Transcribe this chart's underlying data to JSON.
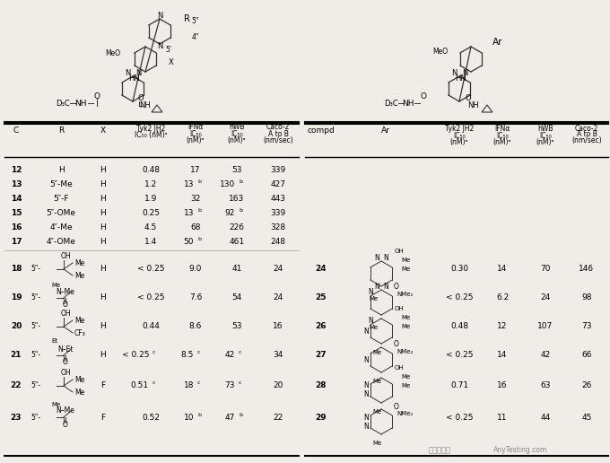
{
  "fig_w": 6.8,
  "fig_h": 5.16,
  "dpi": 100,
  "bg": "#f0ede8",
  "left_simple": [
    [
      "12",
      "H",
      "H",
      "0.48",
      "17",
      "53",
      "339"
    ],
    [
      "13",
      "5″-Me",
      "H",
      "1.2",
      "13b",
      "130b",
      "427"
    ],
    [
      "14",
      "5″-F",
      "H",
      "1.9",
      "32",
      "163",
      "443"
    ],
    [
      "15",
      "5″-OMe",
      "H",
      "0.25",
      "13b",
      "92b",
      "339"
    ],
    [
      "16",
      "4″-Me",
      "H",
      "4.5",
      "68",
      "226",
      "328"
    ],
    [
      "17",
      "4″-OMe",
      "H",
      "1.4",
      "50b",
      "461",
      "248"
    ]
  ],
  "left_struct_nums": [
    "18",
    "19",
    "20",
    "21",
    "22",
    "23"
  ],
  "left_struct_X": [
    "H",
    "H",
    "H",
    "H",
    "F",
    "F"
  ],
  "left_struct_tyk": [
    "< 0.25",
    "< 0.25",
    "0.44",
    "< 0.25c",
    "0.51c",
    "0.52"
  ],
  "left_struct_ifn": [
    "9.0",
    "7.6",
    "8.6",
    "8.5c",
    "18c",
    "10b"
  ],
  "left_struct_hwb": [
    "41",
    "54",
    "53",
    "42c",
    "73c",
    "47b"
  ],
  "left_struct_caco": [
    "24",
    "24",
    "16",
    "34",
    "20",
    "22"
  ],
  "right_nums": [
    "24",
    "25",
    "26",
    "27",
    "28",
    "29"
  ],
  "right_tyk": [
    "0.30",
    "< 0.25",
    "0.48",
    "< 0.25",
    "0.71",
    "< 0.25"
  ],
  "right_ifn": [
    "14",
    "6.2",
    "12",
    "14",
    "16",
    "11"
  ],
  "right_hwb": [
    "70",
    "24",
    "107",
    "42",
    "63",
    "44"
  ],
  "right_caco": [
    "146",
    "98",
    "73",
    "66",
    "26",
    "45"
  ]
}
